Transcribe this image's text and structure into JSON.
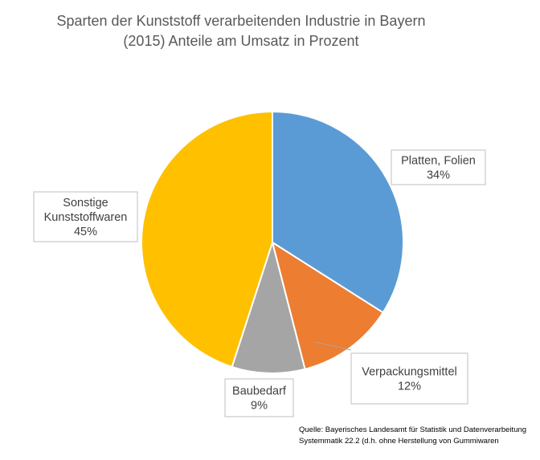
{
  "chart_data": {
    "type": "pie",
    "title": "Sparten der Kunststoff verarbeitenden Industrie in Bayern",
    "subtitle": "(2015) Anteile am Umsatz in Prozent",
    "categories": [
      "Platten, Folien",
      "Verpackungsmittel",
      "Baubedarf",
      "Sonstige Kunststoffwaren"
    ],
    "values": [
      34,
      12,
      9,
      45
    ],
    "labels": [
      "34%",
      "12%",
      "9%",
      "45%"
    ],
    "colors": [
      "#5B9BD5",
      "#ED7D31",
      "#A5A5A5",
      "#FFC000"
    ]
  },
  "source": {
    "line1": "Quelle:  Bayerisches Landesamt für Statistik und Datenverarbeitung",
    "line2": "Systemmatik 22.2 (d.h. ohne Herstellung von Gummiwaren"
  }
}
